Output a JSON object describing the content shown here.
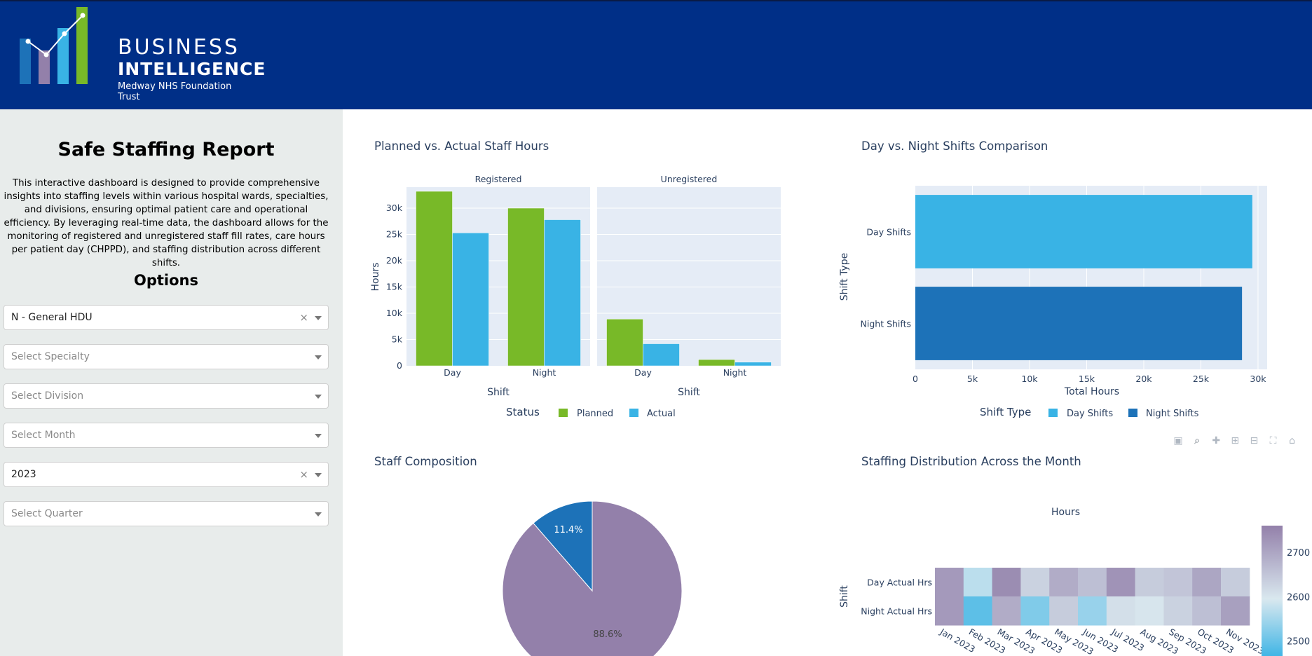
{
  "header": {
    "logo_line1": "BUSINESS",
    "logo_line2": "INTELLIGENCE",
    "logo_line3": "Medway NHS Foundation Trust"
  },
  "sidebar": {
    "title": "Safe Staffing Report",
    "description": "This interactive dashboard is designed to provide comprehensive insights into staffing levels within various hospital wards, specialties, and divisions, ensuring optimal patient care and operational efficiency. By leveraging real-time data, the dashboard allows for the monitoring of registered and unregistered staff fill rates, care hours per patient day (CHPPD), and staffing distribution across different shifts.",
    "options_heading": "Options",
    "ward": {
      "value": "N - General HDU"
    },
    "specialty": {
      "placeholder": "Select Specialty"
    },
    "division": {
      "placeholder": "Select Division"
    },
    "month": {
      "placeholder": "Select Month"
    },
    "year": {
      "value": "2023"
    },
    "quarter": {
      "placeholder": "Select Quarter"
    }
  },
  "colors": {
    "planned": "#78b928",
    "actual": "#39b3e5",
    "day": "#39b3e5",
    "night": "#1d72b8",
    "pie_main": "#9380aa",
    "pie_small": "#1d72b8",
    "plot_bg": "#e5ecf6"
  },
  "modebar_icons": [
    "camera-icon",
    "zoom-icon",
    "pan-icon",
    "zoom-in-icon",
    "zoom-out-icon",
    "autoscale-icon",
    "home-icon"
  ],
  "chart_data": [
    {
      "type": "bar",
      "title": "Planned vs. Actual Staff Hours",
      "ylabel": "Hours",
      "xlabel": "Shift",
      "ylim": [
        0,
        34000
      ],
      "yticks": [
        0,
        5000,
        10000,
        15000,
        20000,
        25000,
        30000
      ],
      "ytick_labels": [
        "0",
        "5k",
        "10k",
        "15k",
        "20k",
        "25k",
        "30k"
      ],
      "legend_title": "Status",
      "facets": [
        {
          "name": "Registered",
          "categories": [
            "Day",
            "Night"
          ],
          "series": [
            {
              "name": "Planned",
              "values": [
                33200,
                30000
              ]
            },
            {
              "name": "Actual",
              "values": [
                25300,
                27800
              ]
            }
          ]
        },
        {
          "name": "Unregistered",
          "categories": [
            "Day",
            "Night"
          ],
          "series": [
            {
              "name": "Planned",
              "values": [
                8900,
                1200
              ]
            },
            {
              "name": "Actual",
              "values": [
                4200,
                700
              ]
            }
          ]
        }
      ]
    },
    {
      "type": "bar",
      "orientation": "horizontal",
      "title": "Day vs. Night Shifts Comparison",
      "xlabel": "Total Hours",
      "ylabel": "Shift Type",
      "xlim": [
        0,
        30800
      ],
      "xticks": [
        0,
        5000,
        10000,
        15000,
        20000,
        25000,
        30000
      ],
      "xtick_labels": [
        "0",
        "5k",
        "10k",
        "15k",
        "20k",
        "25k",
        "30k"
      ],
      "legend_title": "Shift Type",
      "categories": [
        "Day Shifts",
        "Night Shifts"
      ],
      "values": [
        29500,
        28600
      ],
      "series_names": [
        "Day Shifts",
        "Night Shifts"
      ]
    },
    {
      "type": "pie",
      "title": "Staff Composition",
      "values": [
        88.6,
        11.4
      ],
      "labels": [
        "88.6%",
        "11.4%"
      ]
    },
    {
      "type": "heatmap",
      "title": "Staffing Distribution Across the Month",
      "ylabel": "Shift",
      "colorbar_title": "Hours",
      "colorbar_ticks": [
        2500,
        2600,
        2700
      ],
      "colorbar_range": [
        2460,
        2760
      ],
      "rows": [
        "Day Actual Hrs",
        "Night Actual Hrs"
      ],
      "columns": [
        "Jan 2023",
        "Feb 2023",
        "Mar 2023",
        "Apr 2023",
        "May 2023",
        "Jun 2023",
        "Jul 2023",
        "Aug 2023",
        "Sep 2023",
        "Oct 2023",
        "Nov 2023"
      ],
      "values": [
        [
          2720,
          2570,
          2740,
          2630,
          2690,
          2660,
          2730,
          2640,
          2650,
          2700,
          2640
        ],
        [
          2720,
          2490,
          2690,
          2520,
          2640,
          2540,
          2610,
          2600,
          2630,
          2660,
          2710
        ]
      ]
    }
  ]
}
